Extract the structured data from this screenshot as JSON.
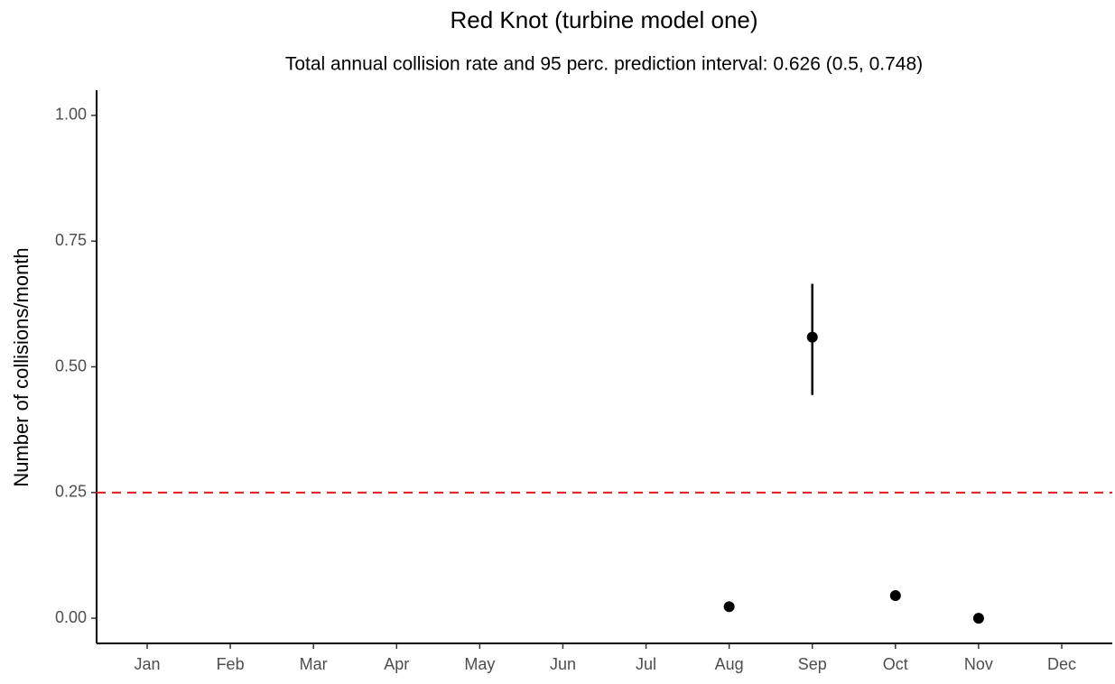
{
  "chart_data": {
    "type": "scatter",
    "title": "Red Knot (turbine model one)",
    "subtitle": "Total annual collision rate and 95 perc. prediction interval: 0.626 (0.5, 0.748)",
    "y_label": "Number of collisions/month",
    "categories": [
      "Jan",
      "Feb",
      "Mar",
      "Apr",
      "May",
      "Jun",
      "Jul",
      "Aug",
      "Sep",
      "Oct",
      "Nov",
      "Dec"
    ],
    "values": [
      null,
      null,
      null,
      null,
      null,
      null,
      null,
      0.023,
      0.559,
      0.045,
      0.0,
      null
    ],
    "lower": [
      null,
      null,
      null,
      null,
      null,
      null,
      null,
      null,
      0.444,
      null,
      null,
      null
    ],
    "upper": [
      null,
      null,
      null,
      null,
      null,
      null,
      null,
      null,
      0.665,
      null,
      null,
      null
    ],
    "color": "#000000",
    "reference_line": {
      "value": 0.25,
      "color": "#e31a1c"
    },
    "ylim": [
      -0.05,
      1.05
    ],
    "yticks": [
      {
        "value": 0,
        "label": "0.00"
      },
      {
        "value": 0.25,
        "label": "0.25"
      },
      {
        "value": 0.5,
        "label": "0.50"
      },
      {
        "value": 0.75,
        "label": "0.75"
      },
      {
        "value": 1,
        "label": "1.00"
      }
    ],
    "grid": false
  }
}
